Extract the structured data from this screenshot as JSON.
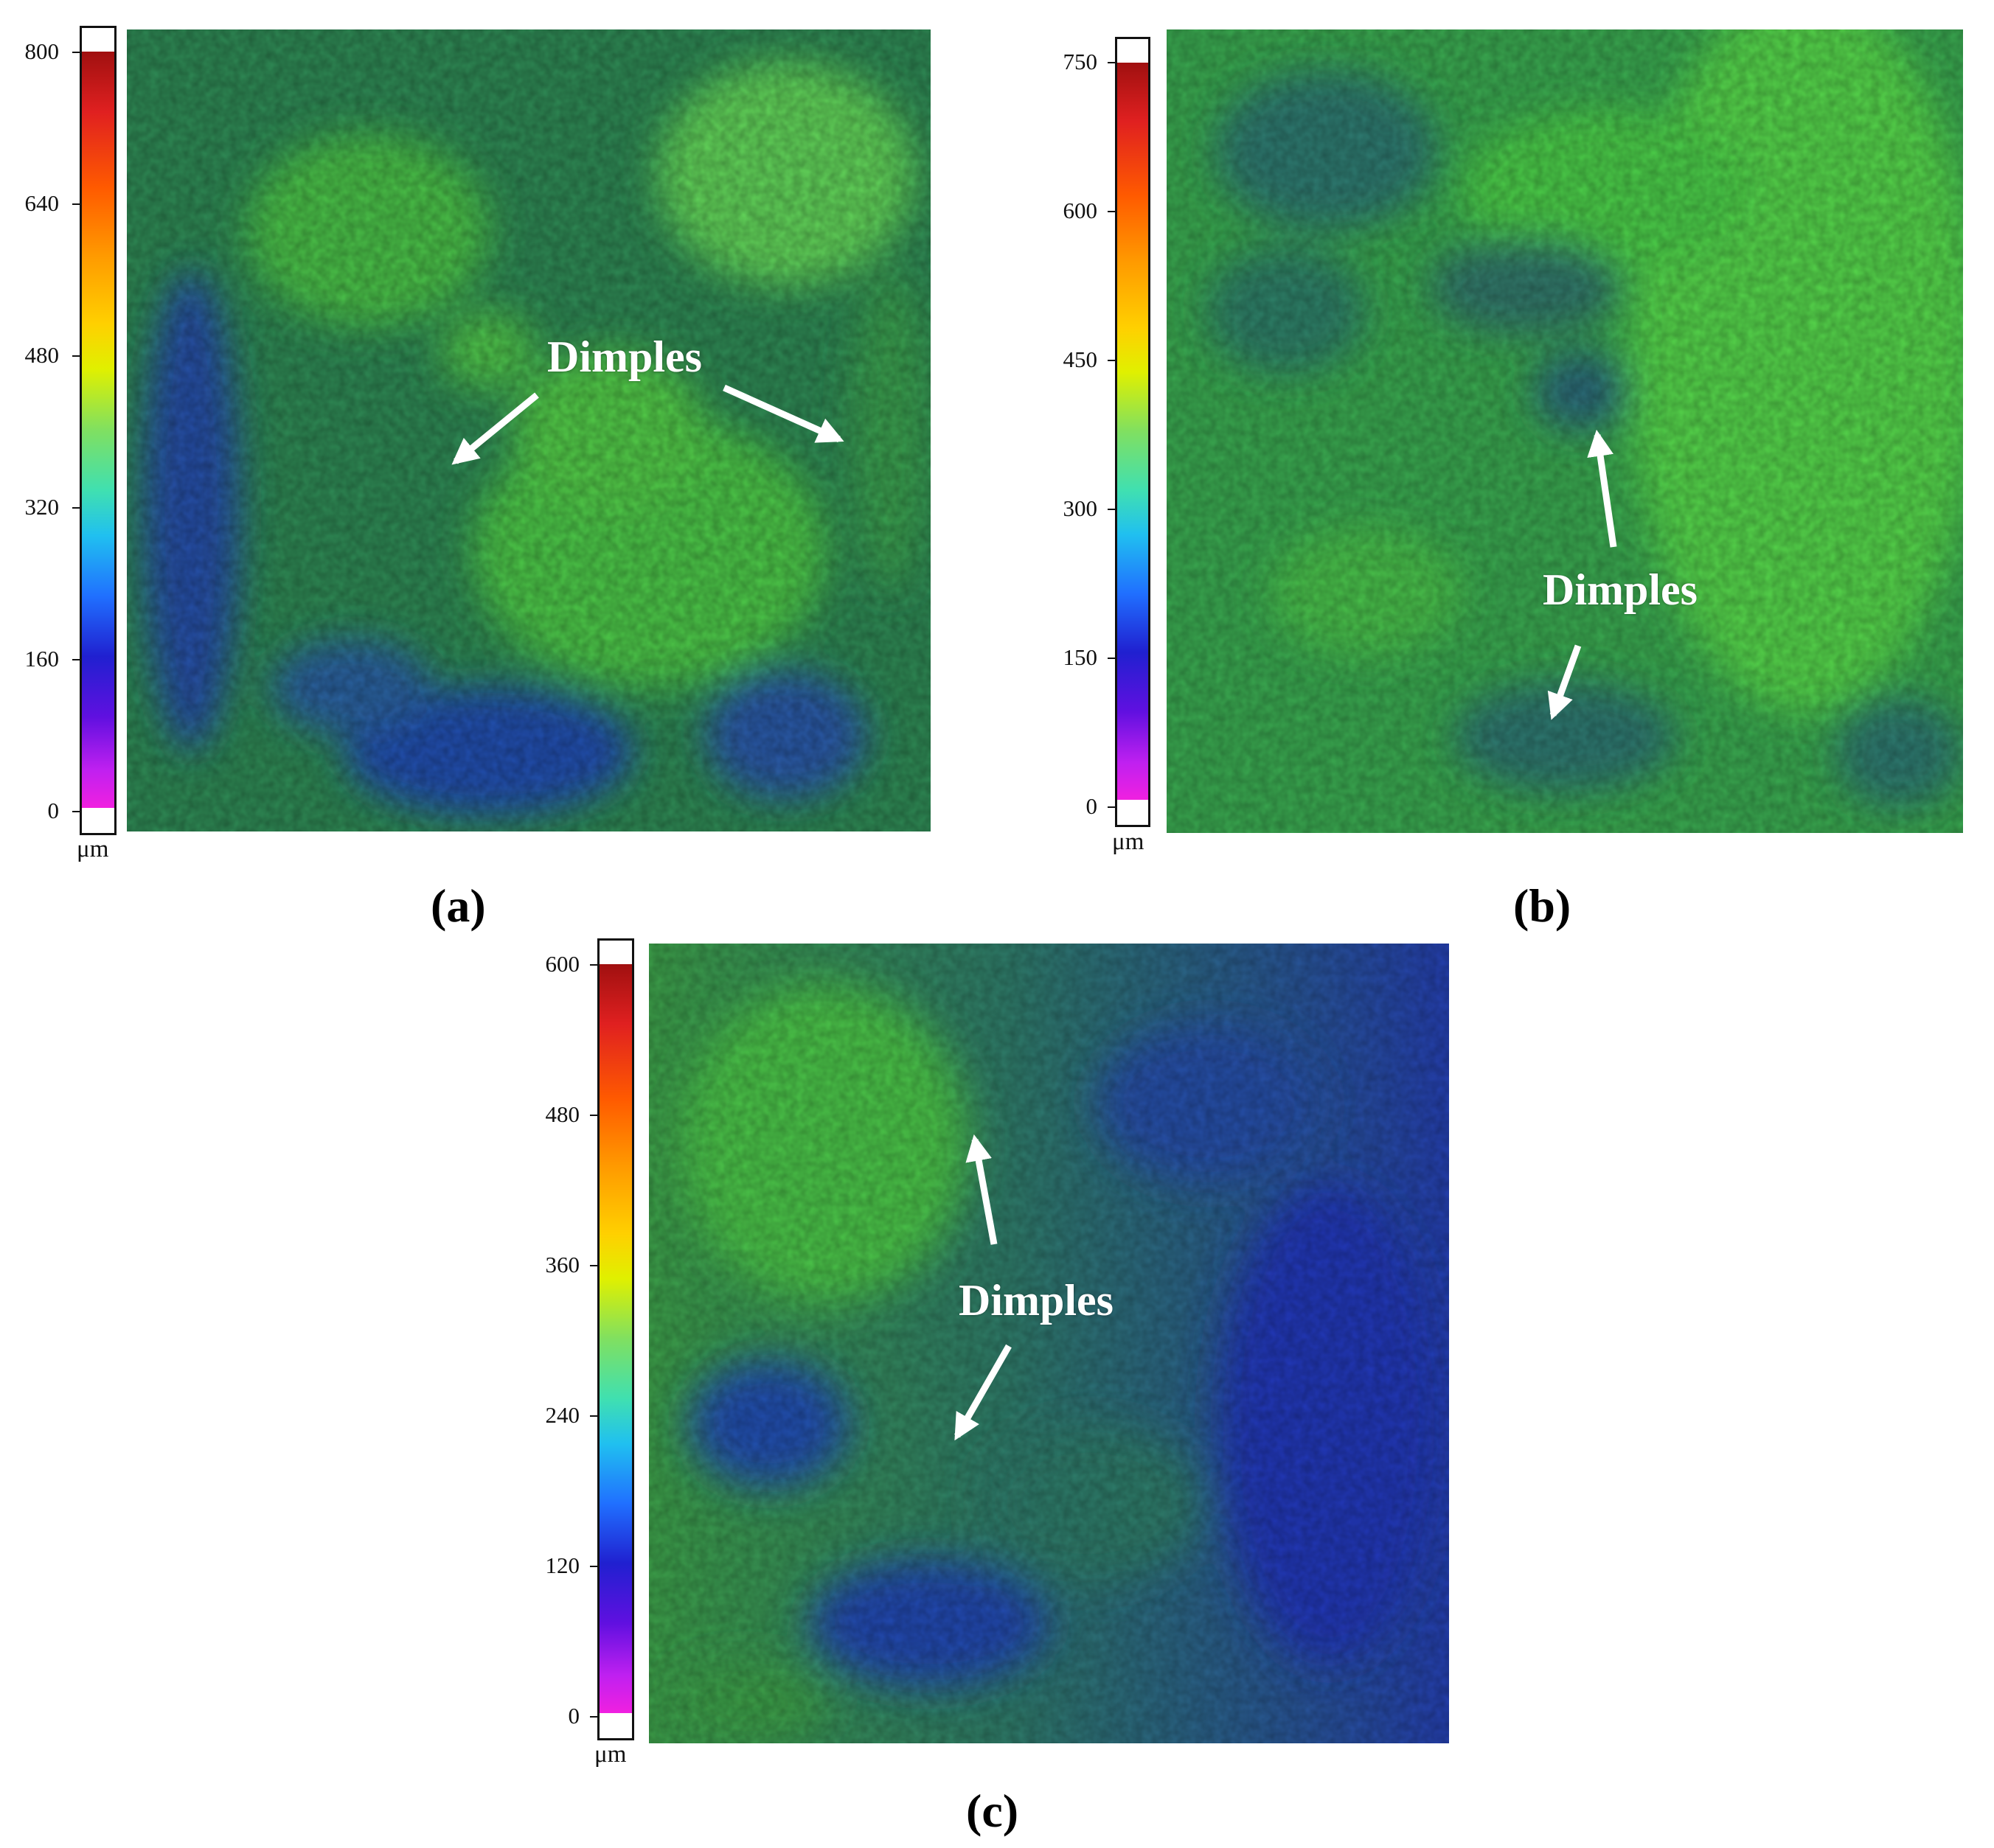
{
  "panels": [
    {
      "label": "(a)",
      "unit": "μm",
      "scale_ticks": [
        "800",
        "640",
        "480",
        "320",
        "160",
        "0"
      ],
      "annotation": "Dimples",
      "tone": "green-dominant with blue patches"
    },
    {
      "label": "(b)",
      "unit": "μm",
      "scale_ticks": [
        "750",
        "600",
        "450",
        "300",
        "150",
        "0"
      ],
      "annotation": "Dimples",
      "tone": "mostly bright green"
    },
    {
      "label": "(c)",
      "unit": "μm",
      "scale_ticks": [
        "600",
        "480",
        "360",
        "240",
        "120",
        "0"
      ],
      "annotation": "Dimples",
      "tone": "green left, blue right"
    }
  ],
  "colors": {
    "scale_gradient": [
      "#a01010",
      "#e02020",
      "#ff5a00",
      "#ff9a00",
      "#ffd000",
      "#e0f000",
      "#80e060",
      "#40e0b0",
      "#20c0f0",
      "#2070ff",
      "#2020d0",
      "#6010e0",
      "#c020f0",
      "#f020e0"
    ],
    "green": "#3cc63c",
    "blue": "#1f3fb0",
    "arrow": "#ffffff"
  }
}
